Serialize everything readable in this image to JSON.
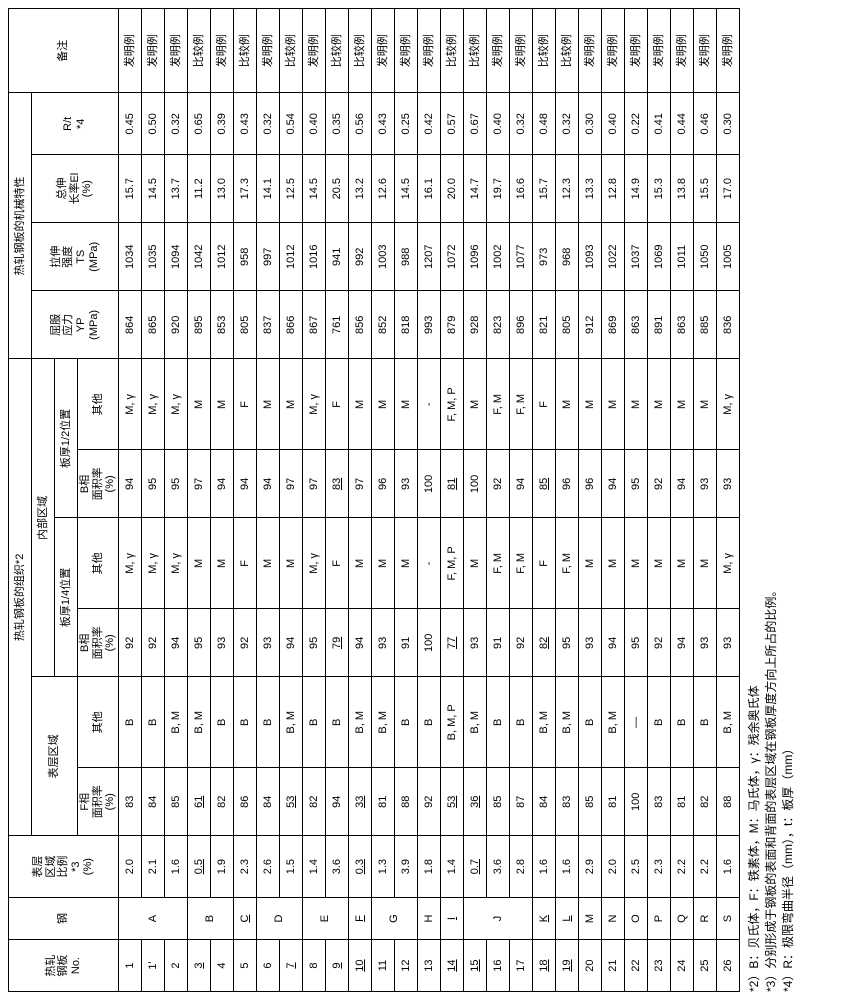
{
  "headers": {
    "col_no": "热轧\n钢板\nNo.",
    "col_steel": "钢",
    "col_ratio": "表层\n区域\n比例\n*3\n(%)",
    "grp_struct": "热轧钢板的组织*2",
    "grp_surface": "表层区域",
    "grp_inner": "内部区域",
    "grp_q14": "板厚1/4位置",
    "grp_q12": "板厚1/2位置",
    "col_f": "F相\n面积率\n(%)",
    "col_oth": "其他",
    "col_b": "B相\n面积率\n(%)",
    "grp_mech": "热轧钢板的机械特性",
    "col_yp": "屈服\n应力\nYP\n(MPa)",
    "col_ts": "拉伸\n强度\nTS\n(MPa)",
    "col_el": "总伸\n长率El\n(%)",
    "col_rt": "R/t\n*4",
    "col_rem": "备注"
  },
  "rem": {
    "inv": "发明例",
    "cmp": "比较例"
  },
  "rows": [
    {
      "no": "1",
      "ul_no": false,
      "st": "A",
      "rs": 3,
      "rat": "2.0",
      "f": "83",
      "so": "B",
      "b1": "92",
      "o1": "M, γ",
      "b2": "94",
      "o2": "M, γ",
      "yp": "864",
      "ts": "1034",
      "el": "15.7",
      "rt": "0.45",
      "rem": "inv",
      "ul": []
    },
    {
      "no": "1'",
      "ul_no": false,
      "rat": "2.1",
      "f": "84",
      "so": "B",
      "b1": "92",
      "o1": "M, γ",
      "b2": "95",
      "o2": "M, γ",
      "yp": "865",
      "ts": "1035",
      "el": "14.5",
      "rt": "0.50",
      "rem": "inv",
      "ul": []
    },
    {
      "no": "2",
      "ul_no": false,
      "rat": "1.6",
      "f": "85",
      "so": "B, M",
      "b1": "94",
      "o1": "M, γ",
      "b2": "95",
      "o2": "M, γ",
      "yp": "920",
      "ts": "1094",
      "el": "13.7",
      "rt": "0.32",
      "rem": "inv",
      "ul": []
    },
    {
      "no": "3",
      "ul_no": true,
      "st": "B",
      "rs": 3,
      "rat": "0.5",
      "f": "61",
      "so": "B, M",
      "b1": "95",
      "o1": "M",
      "b2": "97",
      "o2": "M",
      "yp": "895",
      "ts": "1042",
      "el": "11.2",
      "rt": "0.65",
      "rem": "cmp",
      "ul": [
        "rat",
        "f"
      ]
    },
    {
      "no": "4",
      "ul_no": false,
      "rat": "1.9",
      "f": "82",
      "so": "B",
      "b1": "93",
      "o1": "M",
      "b2": "94",
      "o2": "M",
      "yp": "853",
      "ts": "1012",
      "el": "13.0",
      "rt": "0.39",
      "rem": "inv",
      "ul": []
    },
    {
      "no": "5",
      "ul_no": false,
      "rat": "2.3",
      "f": "86",
      "so": "B",
      "b1": "92",
      "o1": "F",
      "b2": "94",
      "o2": "F",
      "yp": "805",
      "ts": "958",
      "el": "17.3",
      "rt": "0.43",
      "rem": "cmp",
      "ul": []
    },
    {
      "no": "6",
      "ul_no": false,
      "st": "D",
      "rs": 2,
      "rat": "2.6",
      "f": "84",
      "so": "B",
      "b1": "93",
      "o1": "M",
      "b2": "94",
      "o2": "M",
      "yp": "837",
      "ts": "997",
      "el": "14.1",
      "rt": "0.32",
      "rem": "inv",
      "ul": []
    },
    {
      "no": "7",
      "ul_no": true,
      "rat": "1.5",
      "f": "53",
      "so": "B, M",
      "b1": "94",
      "o1": "M",
      "b2": "97",
      "o2": "M",
      "yp": "866",
      "ts": "1012",
      "el": "12.5",
      "rt": "0.54",
      "rem": "cmp",
      "ul": [
        "f"
      ]
    },
    {
      "no": "8",
      "ul_no": false,
      "st": "E",
      "rs": 2,
      "rat": "1.4",
      "f": "82",
      "so": "B",
      "b1": "95",
      "o1": "M, γ",
      "b2": "97",
      "o2": "M, γ",
      "yp": "867",
      "ts": "1016",
      "el": "14.5",
      "rt": "0.40",
      "rem": "inv",
      "ul": []
    },
    {
      "no": "9",
      "ul_no": true,
      "rat": "3.6",
      "f": "94",
      "so": "B",
      "b1": "79",
      "o1": "F",
      "b2": "83",
      "o2": "F",
      "yp": "761",
      "ts": "941",
      "el": "20.5",
      "rt": "0.35",
      "rem": "cmp",
      "ul": [
        "b1",
        "b2"
      ]
    },
    {
      "no": "10",
      "ul_no": true,
      "st": "F",
      "ul_st": true,
      "rs": 1,
      "rat": "0.3",
      "f": "33",
      "so": "B, M",
      "b1": "94",
      "o1": "M",
      "b2": "97",
      "o2": "M",
      "yp": "856",
      "ts": "992",
      "el": "13.2",
      "rt": "0.56",
      "rem": "cmp",
      "ul": [
        "rat",
        "f"
      ]
    },
    {
      "no": "11",
      "ul_no": false,
      "st": "G",
      "rs": 2,
      "rat": "1.3",
      "f": "81",
      "so": "B, M",
      "b1": "93",
      "o1": "M",
      "b2": "96",
      "o2": "M",
      "yp": "852",
      "ts": "1003",
      "el": "12.6",
      "rt": "0.43",
      "rem": "inv",
      "ul": []
    },
    {
      "no": "12",
      "ul_no": false,
      "rat": "3.9",
      "f": "88",
      "so": "B",
      "b1": "91",
      "o1": "M",
      "b2": "93",
      "o2": "M",
      "yp": "818",
      "ts": "988",
      "el": "14.5",
      "rt": "0.25",
      "rem": "inv",
      "ul": []
    },
    {
      "no": "13",
      "ul_no": false,
      "st": "H",
      "rs": 2,
      "rat": "1.8",
      "f": "92",
      "so": "B",
      "b1": "100",
      "o1": "-",
      "b2": "100",
      "o2": "-",
      "yp": "993",
      "ts": "1207",
      "el": "16.1",
      "rt": "0.42",
      "rem": "inv",
      "ul": []
    },
    {
      "no": "14",
      "ul_no": true,
      "rat": "1.4",
      "f": "53",
      "so": "B, M, P",
      "b1": "77",
      "o1": "F, M, P",
      "b2": "81",
      "o2": "F, M, P",
      "yp": "879",
      "ts": "1072",
      "el": "20.0",
      "rt": "0.57",
      "rem": "cmp",
      "ul": [
        "f",
        "b1",
        "b2"
      ]
    },
    {
      "no": "15",
      "ul_no": true,
      "st": "J",
      "rs": 3,
      "rat": "0.7",
      "f": "36",
      "so": "B, M",
      "b1": "93",
      "o1": "M",
      "b2": "100",
      "o2": "M",
      "yp": "928",
      "ts": "1096",
      "el": "14.7",
      "rt": "0.67",
      "rem": "cmp",
      "ul": [
        "rat",
        "f"
      ]
    },
    {
      "no": "16",
      "ul_no": false,
      "rat": "3.6",
      "f": "85",
      "so": "B",
      "b1": "91",
      "o1": "F, M",
      "b2": "92",
      "o2": "F, M",
      "yp": "823",
      "ts": "1002",
      "el": "19.7",
      "rt": "0.40",
      "rem": "inv",
      "ul": []
    },
    {
      "no": "17",
      "ul_no": false,
      "rat": "2.8",
      "f": "87",
      "so": "B",
      "b1": "92",
      "o1": "F, M",
      "b2": "94",
      "o2": "F, M",
      "yp": "896",
      "ts": "1077",
      "el": "16.6",
      "rt": "0.32",
      "rem": "inv",
      "ul": []
    },
    {
      "no": "18",
      "ul_no": true,
      "st": "K",
      "ul_st": true,
      "rs": 1,
      "rat": "1.6",
      "f": "84",
      "so": "B, M",
      "b1": "82",
      "o1": "F",
      "b2": "85",
      "o2": "F",
      "yp": "821",
      "ts": "973",
      "el": "15.7",
      "rt": "0.48",
      "rem": "cmp",
      "ul": [
        "b1",
        "b2"
      ]
    },
    {
      "no": "19",
      "ul_no": true,
      "st": "L",
      "ul_st": true,
      "rs": 1,
      "rat": "1.6",
      "f": "83",
      "so": "B, M",
      "b1": "95",
      "o1": "F, M",
      "b2": "96",
      "o2": "M",
      "yp": "805",
      "ts": "968",
      "el": "12.3",
      "rt": "0.32",
      "rem": "cmp",
      "ul": []
    },
    {
      "no": "20",
      "ul_no": false,
      "st": "M",
      "rs": 1,
      "rat": "2.9",
      "f": "85",
      "so": "B",
      "b1": "93",
      "o1": "M",
      "b2": "96",
      "o2": "M",
      "yp": "912",
      "ts": "1093",
      "el": "13.3",
      "rt": "0.30",
      "rem": "inv",
      "ul": []
    },
    {
      "no": "21",
      "ul_no": false,
      "st": "N",
      "rs": 1,
      "rat": "2.0",
      "f": "81",
      "so": "B, M",
      "b1": "94",
      "o1": "M",
      "b2": "94",
      "o2": "M",
      "yp": "869",
      "ts": "1022",
      "el": "12.8",
      "rt": "0.40",
      "rem": "inv",
      "ul": []
    },
    {
      "no": "22",
      "ul_no": false,
      "st": "O",
      "rs": 1,
      "rat": "2.5",
      "f": "100",
      "so": "—",
      "b1": "95",
      "o1": "M",
      "b2": "95",
      "o2": "M",
      "yp": "863",
      "ts": "1037",
      "el": "14.9",
      "rt": "0.22",
      "rem": "inv",
      "ul": []
    },
    {
      "no": "23",
      "ul_no": false,
      "st": "P",
      "rs": 1,
      "rat": "2.3",
      "f": "83",
      "so": "B",
      "b1": "92",
      "o1": "M",
      "b2": "92",
      "o2": "M",
      "yp": "891",
      "ts": "1069",
      "el": "15.3",
      "rt": "0.41",
      "rem": "inv",
      "ul": []
    },
    {
      "no": "24",
      "ul_no": false,
      "st": "Q",
      "rs": 1,
      "rat": "2.2",
      "f": "81",
      "so": "B",
      "b1": "94",
      "o1": "M",
      "b2": "94",
      "o2": "M",
      "yp": "863",
      "ts": "1011",
      "el": "13.8",
      "rt": "0.44",
      "rem": "inv",
      "ul": []
    },
    {
      "no": "25",
      "ul_no": false,
      "st": "R",
      "rs": 1,
      "rat": "2.2",
      "f": "82",
      "so": "B",
      "b1": "93",
      "o1": "M",
      "b2": "93",
      "o2": "M",
      "yp": "885",
      "ts": "1050",
      "el": "15.5",
      "rt": "0.46",
      "rem": "inv",
      "ul": []
    },
    {
      "no": "26",
      "ul_no": false,
      "st": "S",
      "rs": 1,
      "rat": "1.6",
      "f": "88",
      "so": "B, M",
      "b1": "93",
      "o1": "M, γ",
      "b2": "93",
      "o2": "M, γ",
      "yp": "836",
      "ts": "1005",
      "el": "17.0",
      "rt": "0.30",
      "rem": "inv",
      "ul": []
    }
  ],
  "special": {
    "5": {
      "st": "C",
      "ul_st": true,
      "rs": 1
    },
    "11b": {
      "st": "I",
      "ul_st": true,
      "rs": 1
    }
  },
  "footnotes": {
    "f2": "*2）B：贝氏体，F：铁素体，M：马氏体，γ：残余奥氏体",
    "f3": "*3）分别形成于钢板的表面和背面的表层区域在钢板厚度方向上所占的比例。",
    "f4": "*4）R：极限弯曲半径（mm），t：板厚（mm）"
  }
}
